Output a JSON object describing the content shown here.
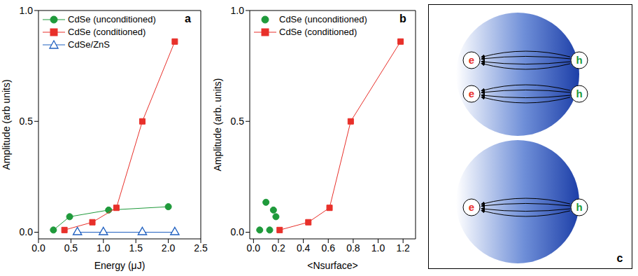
{
  "chart_data": [
    {
      "type": "scatter",
      "x_label": "Energy (μJ)",
      "y_label": "Amplitude (arb units)",
      "xlim": [
        0,
        2.5
      ],
      "xticks": [
        {
          "value": 0,
          "label": "0.0"
        },
        {
          "value": 0.5,
          "label": "0.5"
        },
        {
          "value": 1,
          "label": "1.0"
        },
        {
          "value": 1.5,
          "label": "1.5"
        },
        {
          "value": 2,
          "label": "2.0"
        },
        {
          "value": 2.5,
          "label": "2.5"
        }
      ],
      "ylim": [
        -0.03,
        1
      ],
      "yticks": [
        {
          "value": 0,
          "label": "0.0"
        },
        {
          "value": 0.5,
          "label": "0.5"
        },
        {
          "value": 1,
          "label": "1.0"
        }
      ],
      "legend": "upper left",
      "annotations": [
        "a"
      ],
      "series": [
        {
          "name": "CdSe (unconditioned)",
          "color": "#1f9a3b",
          "marker": "circle",
          "line_style": "solid",
          "x": [
            0.23,
            0.48,
            1.08,
            2.0
          ],
          "values": [
            0.01,
            0.07,
            0.1,
            0.115
          ]
        },
        {
          "name": "CdSe (conditioned)",
          "color": "#e8302a",
          "marker": "square",
          "line_style": "solid",
          "x": [
            0.4,
            0.83,
            1.2,
            1.6,
            2.1
          ],
          "values": [
            0.01,
            0.045,
            0.11,
            0.5,
            0.86
          ]
        },
        {
          "name": "CdSe/ZnS",
          "color": "#2060c0",
          "marker": "open_triangle",
          "line_style": "solid",
          "x": [
            0.6,
            1.0,
            1.6,
            2.1
          ],
          "values": [
            0.0,
            0.0,
            0.0,
            0.0
          ]
        }
      ]
    },
    {
      "type": "scatter",
      "x_label": "<Nsurface>",
      "y_label": "Amplitude (arb. units)",
      "xlim": [
        -0.03,
        1.3
      ],
      "xticks": [
        {
          "value": 0,
          "label": "0.0"
        },
        {
          "value": 0.2,
          "label": "0.2"
        },
        {
          "value": 0.4,
          "label": "0.4"
        },
        {
          "value": 0.6,
          "label": "0.6"
        },
        {
          "value": 0.8,
          "label": "0.8"
        },
        {
          "value": 1,
          "label": "1.0"
        },
        {
          "value": 1.2,
          "label": "1.2"
        }
      ],
      "ylim": [
        -0.03,
        1
      ],
      "yticks": [
        {
          "value": 0,
          "label": "0.0"
        },
        {
          "value": 0.5,
          "label": "0.5"
        },
        {
          "value": 1,
          "label": "1.0"
        }
      ],
      "legend": "upper left",
      "annotations": [
        "b"
      ],
      "series": [
        {
          "name": "CdSe (unconditioned)",
          "color": "#1f9a3b",
          "marker": "circle",
          "line_style": "none",
          "x": [
            0.05,
            0.1,
            0.13,
            0.16,
            0.18
          ],
          "values": [
            0.01,
            0.135,
            0.01,
            0.1,
            0.07
          ]
        },
        {
          "name": "CdSe (conditioned)",
          "color": "#e8302a",
          "marker": "square",
          "line_style": "solid",
          "x": [
            0.21,
            0.44,
            0.61,
            0.78,
            1.18
          ],
          "values": [
            0.01,
            0.045,
            0.11,
            0.5,
            0.86
          ]
        }
      ]
    }
  ],
  "diagram": {
    "label": "c",
    "circles": [
      {
        "pairs": [
          {
            "electron": "e",
            "hole": "h"
          },
          {
            "electron": "e",
            "hole": "h"
          }
        ]
      },
      {
        "pairs": [
          {
            "electron": "e",
            "hole": "h"
          }
        ]
      }
    ]
  }
}
